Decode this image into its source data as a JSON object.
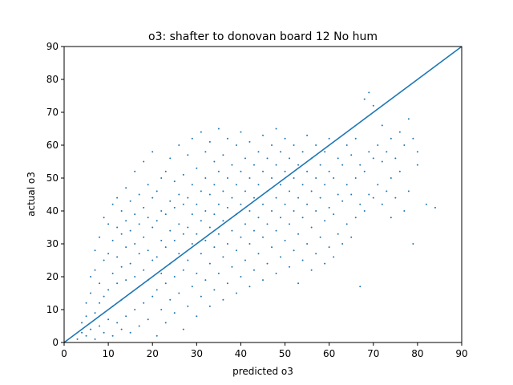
{
  "chart_data": {
    "type": "scatter",
    "title": "o3: shafter to donovan board 12 No hum",
    "xlabel": "predicted o3",
    "ylabel": "actual o3",
    "xlim": [
      0,
      90
    ],
    "ylim": [
      0,
      90
    ],
    "xticks": [
      "0",
      "10",
      "20",
      "30",
      "40",
      "50",
      "60",
      "70",
      "80",
      "90"
    ],
    "yticks": [
      "0",
      "10",
      "20",
      "30",
      "40",
      "50",
      "60",
      "70",
      "80",
      "90"
    ],
    "grid": false,
    "point_color": "#1f77b4",
    "line_color": "#1f77b4",
    "reference_line": {
      "from": [
        0,
        0
      ],
      "to": [
        90,
        90
      ]
    },
    "series": [
      {
        "values": [
          [
            3,
            1
          ],
          [
            4,
            3
          ],
          [
            4,
            6
          ],
          [
            5,
            2
          ],
          [
            5,
            8
          ],
          [
            5,
            12
          ],
          [
            6,
            4
          ],
          [
            6,
            15
          ],
          [
            6,
            20
          ],
          [
            7,
            1
          ],
          [
            7,
            9
          ],
          [
            7,
            22
          ],
          [
            7,
            28
          ],
          [
            8,
            5
          ],
          [
            8,
            12
          ],
          [
            8,
            18
          ],
          [
            8,
            32
          ],
          [
            9,
            3
          ],
          [
            9,
            14
          ],
          [
            9,
            25
          ],
          [
            9,
            38
          ],
          [
            10,
            7
          ],
          [
            10,
            16
          ],
          [
            10,
            27
          ],
          [
            10,
            36
          ],
          [
            11,
            2
          ],
          [
            11,
            11
          ],
          [
            11,
            21
          ],
          [
            11,
            31
          ],
          [
            11,
            42
          ],
          [
            12,
            6
          ],
          [
            12,
            18
          ],
          [
            12,
            26
          ],
          [
            12,
            35
          ],
          [
            12,
            44
          ],
          [
            13,
            4
          ],
          [
            13,
            13
          ],
          [
            13,
            23
          ],
          [
            13,
            33
          ],
          [
            13,
            40
          ],
          [
            14,
            8
          ],
          [
            14,
            19
          ],
          [
            14,
            29
          ],
          [
            14,
            37
          ],
          [
            14,
            47
          ],
          [
            15,
            3
          ],
          [
            15,
            15
          ],
          [
            15,
            24
          ],
          [
            15,
            34
          ],
          [
            15,
            43
          ],
          [
            16,
            10
          ],
          [
            16,
            20
          ],
          [
            16,
            30
          ],
          [
            16,
            39
          ],
          [
            16,
            52
          ],
          [
            17,
            5
          ],
          [
            17,
            17
          ],
          [
            17,
            27
          ],
          [
            17,
            36
          ],
          [
            17,
            45
          ],
          [
            18,
            12
          ],
          [
            18,
            22
          ],
          [
            18,
            32
          ],
          [
            18,
            41
          ],
          [
            18,
            55
          ],
          [
            19,
            7
          ],
          [
            19,
            19
          ],
          [
            19,
            28
          ],
          [
            19,
            38
          ],
          [
            19,
            48
          ],
          [
            20,
            14
          ],
          [
            20,
            25
          ],
          [
            20,
            35
          ],
          [
            20,
            44
          ],
          [
            20,
            58
          ],
          [
            21,
            2
          ],
          [
            21,
            16
          ],
          [
            21,
            26
          ],
          [
            21,
            37
          ],
          [
            21,
            46
          ],
          [
            22,
            10
          ],
          [
            22,
            21
          ],
          [
            22,
            31
          ],
          [
            22,
            40
          ],
          [
            22,
            50
          ],
          [
            23,
            6
          ],
          [
            23,
            18
          ],
          [
            23,
            29
          ],
          [
            23,
            39
          ],
          [
            23,
            52
          ],
          [
            24,
            13
          ],
          [
            24,
            24
          ],
          [
            24,
            34
          ],
          [
            24,
            43
          ],
          [
            24,
            56
          ],
          [
            25,
            9
          ],
          [
            25,
            20
          ],
          [
            25,
            31
          ],
          [
            25,
            41
          ],
          [
            25,
            49
          ],
          [
            26,
            15
          ],
          [
            26,
            27
          ],
          [
            26,
            36
          ],
          [
            26,
            45
          ],
          [
            26,
            60
          ],
          [
            27,
            4
          ],
          [
            27,
            22
          ],
          [
            27,
            33
          ],
          [
            27,
            42
          ],
          [
            27,
            51
          ],
          [
            28,
            11
          ],
          [
            28,
            25
          ],
          [
            28,
            35
          ],
          [
            28,
            44
          ],
          [
            28,
            57
          ],
          [
            29,
            17
          ],
          [
            29,
            30
          ],
          [
            29,
            39
          ],
          [
            29,
            48
          ],
          [
            29,
            62
          ],
          [
            30,
            8
          ],
          [
            30,
            21
          ],
          [
            30,
            33
          ],
          [
            30,
            42
          ],
          [
            30,
            53
          ],
          [
            31,
            14
          ],
          [
            31,
            27
          ],
          [
            31,
            37
          ],
          [
            31,
            46
          ],
          [
            31,
            64
          ],
          [
            32,
            19
          ],
          [
            32,
            31
          ],
          [
            32,
            40
          ],
          [
            32,
            50
          ],
          [
            32,
            58
          ],
          [
            33,
            11
          ],
          [
            33,
            24
          ],
          [
            33,
            35
          ],
          [
            33,
            45
          ],
          [
            33,
            61
          ],
          [
            34,
            16
          ],
          [
            34,
            29
          ],
          [
            34,
            39
          ],
          [
            34,
            48
          ],
          [
            34,
            55
          ],
          [
            35,
            21
          ],
          [
            35,
            33
          ],
          [
            35,
            42
          ],
          [
            35,
            52
          ],
          [
            35,
            65
          ],
          [
            36,
            13
          ],
          [
            36,
            26
          ],
          [
            36,
            37
          ],
          [
            36,
            46
          ],
          [
            36,
            57
          ],
          [
            37,
            18
          ],
          [
            37,
            30
          ],
          [
            37,
            41
          ],
          [
            37,
            50
          ],
          [
            37,
            62
          ],
          [
            38,
            23
          ],
          [
            38,
            34
          ],
          [
            38,
            44
          ],
          [
            38,
            54
          ],
          [
            39,
            15
          ],
          [
            39,
            28
          ],
          [
            39,
            39
          ],
          [
            39,
            48
          ],
          [
            39,
            60
          ],
          [
            40,
            20
          ],
          [
            40,
            32
          ],
          [
            40,
            42
          ],
          [
            40,
            52
          ],
          [
            40,
            64
          ],
          [
            41,
            25
          ],
          [
            41,
            36
          ],
          [
            41,
            46
          ],
          [
            41,
            56
          ],
          [
            42,
            17
          ],
          [
            42,
            30
          ],
          [
            42,
            40
          ],
          [
            42,
            50
          ],
          [
            42,
            61
          ],
          [
            43,
            22
          ],
          [
            43,
            34
          ],
          [
            43,
            44
          ],
          [
            43,
            54
          ],
          [
            44,
            27
          ],
          [
            44,
            38
          ],
          [
            44,
            48
          ],
          [
            44,
            58
          ],
          [
            45,
            19
          ],
          [
            45,
            32
          ],
          [
            45,
            42
          ],
          [
            45,
            52
          ],
          [
            45,
            63
          ],
          [
            46,
            24
          ],
          [
            46,
            36
          ],
          [
            46,
            46
          ],
          [
            46,
            56
          ],
          [
            47,
            29
          ],
          [
            47,
            40
          ],
          [
            47,
            50
          ],
          [
            47,
            60
          ],
          [
            48,
            21
          ],
          [
            48,
            34
          ],
          [
            48,
            44
          ],
          [
            48,
            54
          ],
          [
            48,
            65
          ],
          [
            49,
            26
          ],
          [
            49,
            38
          ],
          [
            49,
            48
          ],
          [
            49,
            58
          ],
          [
            50,
            31
          ],
          [
            50,
            42
          ],
          [
            50,
            52
          ],
          [
            50,
            62
          ],
          [
            51,
            23
          ],
          [
            51,
            36
          ],
          [
            51,
            46
          ],
          [
            51,
            56
          ],
          [
            52,
            28
          ],
          [
            52,
            40
          ],
          [
            52,
            50
          ],
          [
            52,
            60
          ],
          [
            53,
            18
          ],
          [
            53,
            33
          ],
          [
            53,
            44
          ],
          [
            53,
            54
          ],
          [
            54,
            25
          ],
          [
            54,
            38
          ],
          [
            54,
            48
          ],
          [
            54,
            58
          ],
          [
            55,
            30
          ],
          [
            55,
            42
          ],
          [
            55,
            52
          ],
          [
            55,
            63
          ],
          [
            56,
            22
          ],
          [
            56,
            35
          ],
          [
            56,
            46
          ],
          [
            56,
            56
          ],
          [
            57,
            27
          ],
          [
            57,
            40
          ],
          [
            57,
            50
          ],
          [
            57,
            60
          ],
          [
            58,
            32
          ],
          [
            58,
            44
          ],
          [
            58,
            54
          ],
          [
            59,
            24
          ],
          [
            59,
            37
          ],
          [
            59,
            48
          ],
          [
            59,
            58
          ],
          [
            60,
            29
          ],
          [
            60,
            41
          ],
          [
            60,
            52
          ],
          [
            60,
            62
          ],
          [
            61,
            26
          ],
          [
            61,
            39
          ],
          [
            61,
            50
          ],
          [
            62,
            33
          ],
          [
            62,
            45
          ],
          [
            62,
            56
          ],
          [
            63,
            30
          ],
          [
            63,
            43
          ],
          [
            63,
            54
          ],
          [
            64,
            36
          ],
          [
            64,
            48
          ],
          [
            64,
            60
          ],
          [
            65,
            32
          ],
          [
            65,
            45
          ],
          [
            65,
            57
          ],
          [
            66,
            38
          ],
          [
            66,
            50
          ],
          [
            66,
            62
          ],
          [
            67,
            17
          ],
          [
            67,
            42
          ],
          [
            67,
            54
          ],
          [
            68,
            40
          ],
          [
            68,
            52
          ],
          [
            68,
            74
          ],
          [
            69,
            45
          ],
          [
            69,
            58
          ],
          [
            69,
            76
          ],
          [
            70,
            44
          ],
          [
            70,
            56
          ],
          [
            70,
            72
          ],
          [
            71,
            48
          ],
          [
            71,
            60
          ],
          [
            72,
            42
          ],
          [
            72,
            55
          ],
          [
            72,
            66
          ],
          [
            73,
            46
          ],
          [
            73,
            58
          ],
          [
            74,
            38
          ],
          [
            74,
            50
          ],
          [
            74,
            62
          ],
          [
            75,
            44
          ],
          [
            75,
            56
          ],
          [
            76,
            52
          ],
          [
            76,
            64
          ],
          [
            77,
            40
          ],
          [
            77,
            60
          ],
          [
            78,
            46
          ],
          [
            78,
            68
          ],
          [
            79,
            62
          ],
          [
            79,
            30
          ],
          [
            80,
            54
          ],
          [
            80,
            58
          ],
          [
            82,
            42
          ],
          [
            84,
            41
          ]
        ]
      }
    ]
  }
}
